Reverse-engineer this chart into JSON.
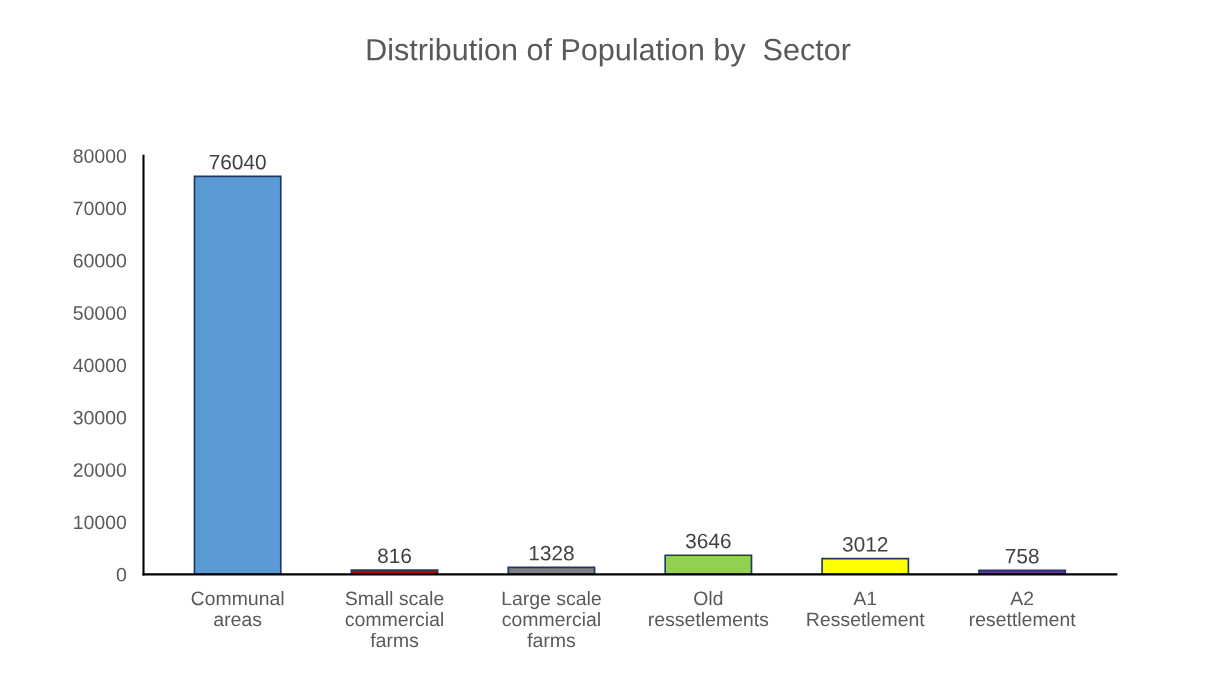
{
  "chart_data": {
    "type": "bar",
    "title": "Distribution of Population by  Sector",
    "categories": [
      "Communal\nareas",
      "Small scale\ncommercial\nfarms",
      "Large scale\ncommercial\nfarms",
      "Old\nressetlements",
      "A1\nRessetlement",
      "A2\nresettlement"
    ],
    "values": [
      76040,
      816,
      1328,
      3646,
      3012,
      758
    ],
    "colors": [
      "#5b9bd5",
      "#c00000",
      "#7f7f7f",
      "#92d050",
      "#ffff00",
      "#7030a0"
    ],
    "ylim": [
      0,
      80000
    ],
    "yticks": [
      0,
      10000,
      20000,
      30000,
      40000,
      50000,
      60000,
      70000,
      80000
    ],
    "data_labels": true,
    "grid": false,
    "legend": false
  }
}
